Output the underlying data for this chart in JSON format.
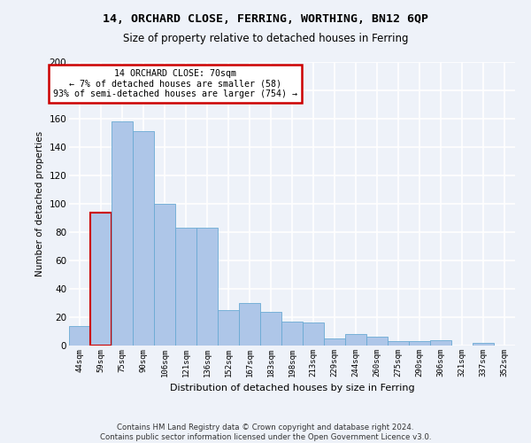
{
  "title_line1": "14, ORCHARD CLOSE, FERRING, WORTHING, BN12 6QP",
  "title_line2": "Size of property relative to detached houses in Ferring",
  "xlabel": "Distribution of detached houses by size in Ferring",
  "ylabel": "Number of detached properties",
  "categories": [
    "44sqm",
    "59sqm",
    "75sqm",
    "90sqm",
    "106sqm",
    "121sqm",
    "136sqm",
    "152sqm",
    "167sqm",
    "183sqm",
    "198sqm",
    "213sqm",
    "229sqm",
    "244sqm",
    "260sqm",
    "275sqm",
    "290sqm",
    "306sqm",
    "321sqm",
    "337sqm",
    "352sqm"
  ],
  "values": [
    14,
    94,
    158,
    151,
    100,
    83,
    83,
    25,
    30,
    24,
    17,
    16,
    5,
    8,
    6,
    3,
    3,
    4,
    0,
    2,
    0
  ],
  "bar_color": "#aec6e8",
  "bar_edge_color": "#6aaad4",
  "highlight_bar_index": 1,
  "highlight_edge_color": "#cc0000",
  "annotation_text": "14 ORCHARD CLOSE: 70sqm\n← 7% of detached houses are smaller (58)\n93% of semi-detached houses are larger (754) →",
  "annotation_box_color": "white",
  "annotation_box_edge_color": "#cc0000",
  "ylim": [
    0,
    200
  ],
  "yticks": [
    0,
    20,
    40,
    60,
    80,
    100,
    120,
    140,
    160,
    180,
    200
  ],
  "footer_line1": "Contains HM Land Registry data © Crown copyright and database right 2024.",
  "footer_line2": "Contains public sector information licensed under the Open Government Licence v3.0.",
  "background_color": "#eef2f9",
  "grid_color": "white",
  "fig_width": 6.0,
  "fig_height": 5.0,
  "dpi": 100
}
